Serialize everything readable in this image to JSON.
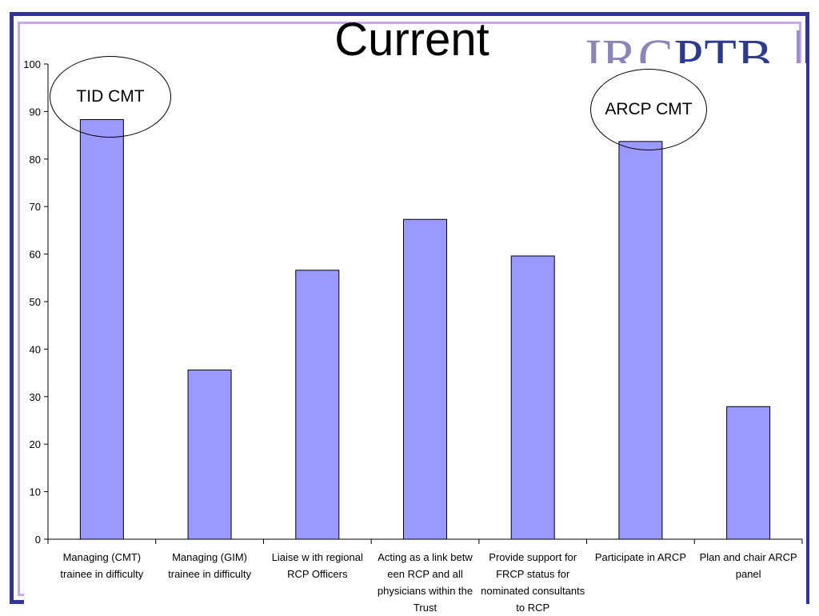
{
  "slide": {
    "title": "Current",
    "logo_text_light": "JRC",
    "logo_text_dark": "PTB"
  },
  "annotations": [
    {
      "id": "tid",
      "text": "TID CMT"
    },
    {
      "id": "arcp",
      "text": "ARCP CMT"
    }
  ],
  "chart_data": {
    "type": "bar",
    "categories": [
      "Managing (CMT) trainee in difficulty",
      "Managing (GIM) trainee in difficulty",
      "Liaise w ith regional RCP Officers",
      "Acting as a link betw een RCP and all physicians within the Trust",
      "Provide support for FRCP status for nominated consultants to RCP",
      "Participate in ARCP",
      "Plan and chair ARCP panel"
    ],
    "values": [
      88.3,
      35.6,
      56.6,
      67.3,
      59.6,
      83.7,
      27.9
    ],
    "yticks": [
      "0",
      "10",
      "20",
      "30",
      "40",
      "50",
      "60",
      "70",
      "80",
      "90",
      "100"
    ],
    "ylim": [
      0,
      100
    ],
    "bar_color": "#9999ff",
    "grid": false,
    "legend": "none"
  }
}
